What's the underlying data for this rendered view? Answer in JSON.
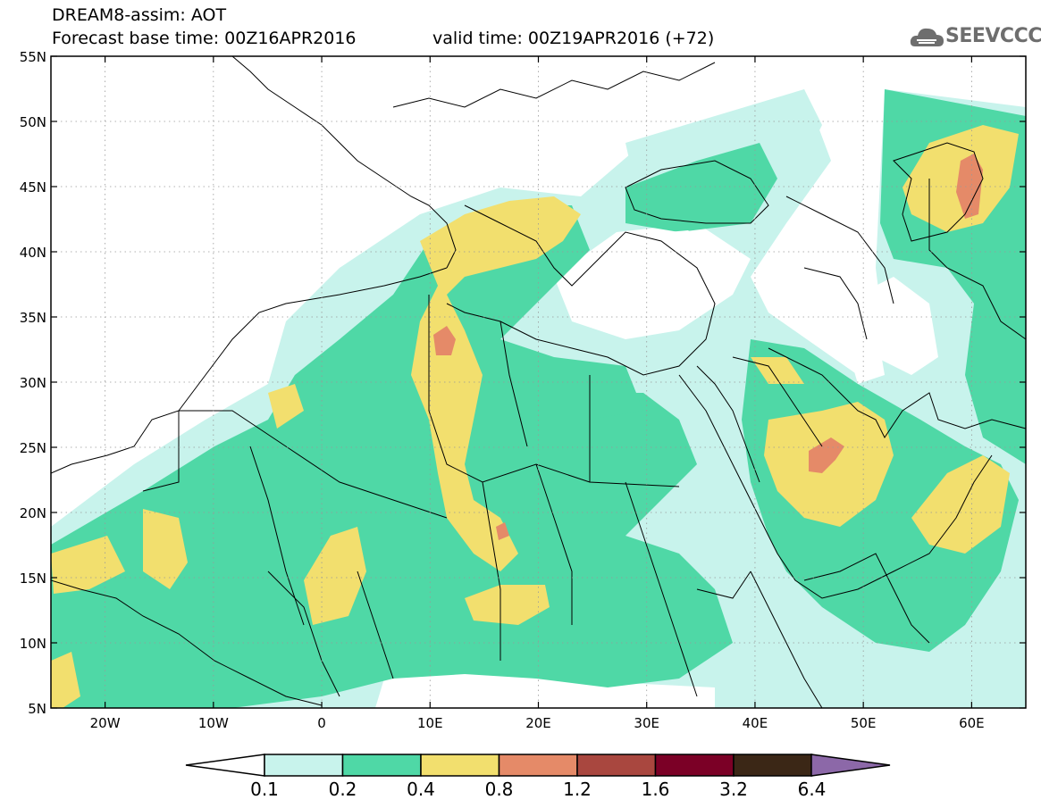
{
  "title": {
    "line1": "DREAM8-assim: AOT",
    "line2": "Forecast base time: 00Z16APR2016",
    "valid": "valid time: 00Z19APR2016 (+72)"
  },
  "logo": {
    "text": "SEEVCCC",
    "icon": "cloud-icon"
  },
  "map": {
    "lat_labels": [
      "55N",
      "50N",
      "45N",
      "40N",
      "35N",
      "30N",
      "25N",
      "20N",
      "15N",
      "10N",
      "5N"
    ],
    "lon_labels": [
      "20W",
      "10W",
      "0",
      "10E",
      "20E",
      "30E",
      "40E",
      "50E",
      "60E"
    ],
    "extent": {
      "lon": [
        -25,
        65
      ],
      "lat": [
        5,
        55
      ]
    }
  },
  "colorbar": {
    "labels": [
      "0.1",
      "0.2",
      "0.4",
      "0.8",
      "1.2",
      "1.6",
      "3.2",
      "6.4"
    ],
    "colors": [
      "#c8f3ec",
      "#4fd8a6",
      "#f2df6e",
      "#e58a68",
      "#a9473f",
      "#7b0026",
      "#3b2716",
      "#8c68a8"
    ]
  }
}
